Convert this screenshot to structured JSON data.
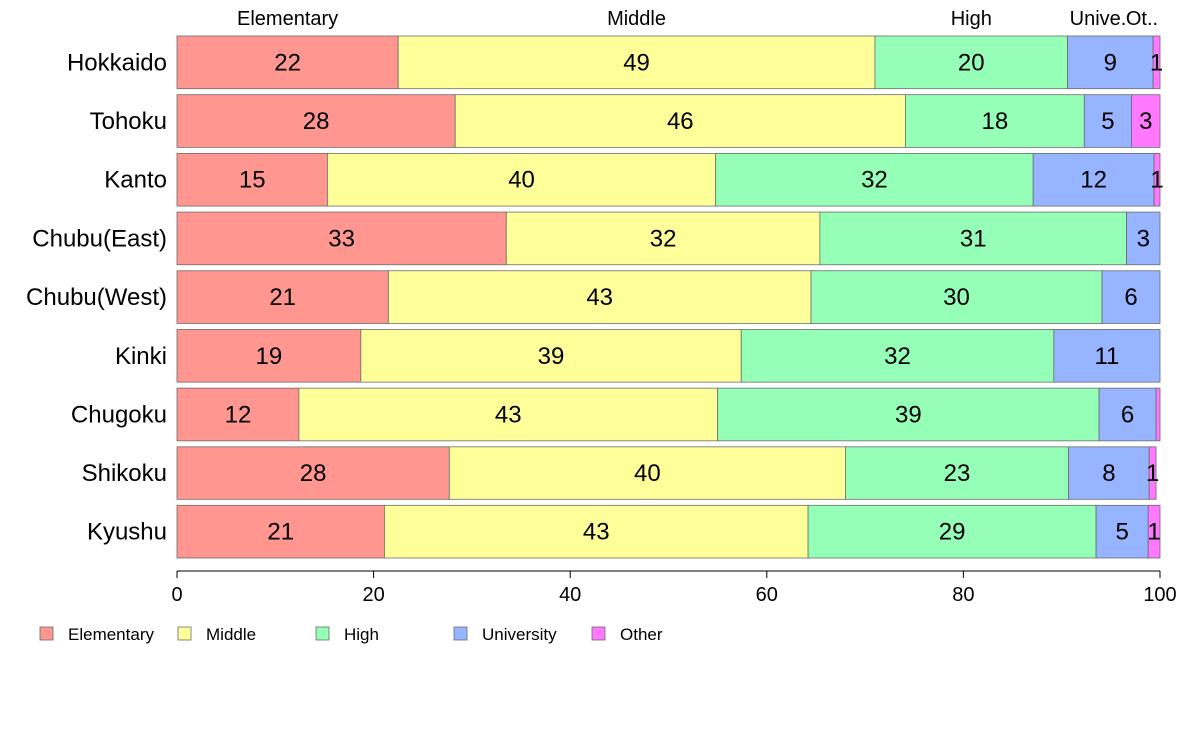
{
  "chart_data": {
    "type": "bar",
    "orientation": "horizontal",
    "stacked": true,
    "title": "",
    "xlabel": "",
    "ylabel": "",
    "xlim": [
      0,
      100
    ],
    "x_ticks": [
      "0",
      "20",
      "40",
      "60",
      "80",
      "100"
    ],
    "top_labels": [
      "Elementary",
      "Middle",
      "High",
      "Unive.",
      "Ot.."
    ],
    "categories": [
      "Hokkaido",
      "Tohoku",
      "Kanto",
      "Chubu(East)",
      "Chubu(West)",
      "Kinki",
      "Chugoku",
      "Shikoku",
      "Kyushu"
    ],
    "series": [
      {
        "name": "Elementary",
        "color": "#FF9690",
        "values": [
          22.5,
          28.3,
          15.3,
          33.5,
          21.5,
          18.7,
          12.4,
          27.7,
          21.1
        ],
        "labels": [
          "22",
          "28",
          "15",
          "33",
          "21",
          "19",
          "12",
          "28",
          "21"
        ]
      },
      {
        "name": "Middle",
        "color": "#FFFF99",
        "values": [
          48.5,
          45.8,
          39.5,
          31.9,
          43.0,
          38.7,
          42.6,
          40.3,
          43.1
        ],
        "labels": [
          "49",
          "46",
          "40",
          "32",
          "43",
          "39",
          "43",
          "40",
          "43"
        ]
      },
      {
        "name": "High",
        "color": "#96FFB7",
        "values": [
          19.6,
          18.2,
          32.3,
          31.2,
          29.6,
          31.8,
          38.8,
          22.7,
          29.3
        ],
        "labels": [
          "20",
          "18",
          "32",
          "31",
          "30",
          "32",
          "39",
          "23",
          "29"
        ]
      },
      {
        "name": "University",
        "color": "#96B4FF",
        "values": [
          8.7,
          4.8,
          12.3,
          3.4,
          5.9,
          10.8,
          5.8,
          8.2,
          5.3
        ],
        "labels": [
          "9",
          "5",
          "12",
          "3",
          "6",
          "11",
          "6",
          "8",
          "5"
        ]
      },
      {
        "name": "Other",
        "color": "#FF78FF",
        "values": [
          0.7,
          2.9,
          0.6,
          0.0,
          0.0,
          0.0,
          0.4,
          0.7,
          1.2
        ],
        "labels": [
          "1",
          "3",
          "1",
          "",
          "",
          "",
          "",
          "1",
          "1"
        ]
      }
    ],
    "legend": {
      "placement": "bottom-left",
      "entries": [
        "Elementary",
        "Middle",
        "High",
        "University",
        "Other"
      ]
    },
    "grid": false
  }
}
